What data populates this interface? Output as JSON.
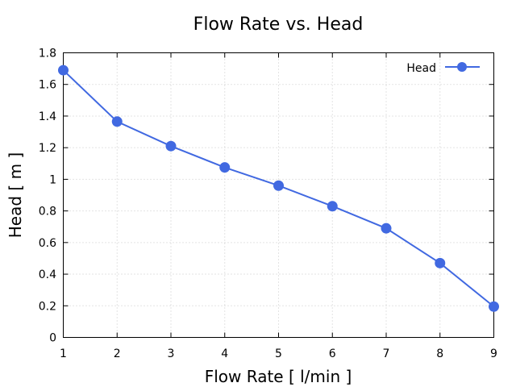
{
  "chart_data": {
    "type": "line",
    "title": "Flow Rate vs. Head",
    "xlabel": "Flow Rate [ l/min ]",
    "ylabel": "Head [ m ]",
    "x": [
      1,
      2,
      3,
      4,
      5,
      6,
      7,
      8,
      9
    ],
    "xlim": [
      1,
      9
    ],
    "ylim": [
      0,
      1.8
    ],
    "xticks": [
      1,
      2,
      3,
      4,
      5,
      6,
      7,
      8,
      9
    ],
    "yticks": [
      0,
      0.2,
      0.4,
      0.6,
      0.8,
      1,
      1.2,
      1.4,
      1.6,
      1.8
    ],
    "xtick_labels": [
      "1",
      "2",
      "3",
      "4",
      "5",
      "6",
      "7",
      "8",
      "9"
    ],
    "ytick_labels": [
      "0",
      "0.2",
      "0.4",
      "0.6",
      "0.8",
      "1",
      "1.2",
      "1.4",
      "1.6",
      "1.8"
    ],
    "grid": true,
    "legend_position": "top-right",
    "series": [
      {
        "name": "Head",
        "color": "#4169e1",
        "marker": "circle",
        "values": [
          1.69,
          1.365,
          1.21,
          1.075,
          0.96,
          0.83,
          0.69,
          0.47,
          0.195
        ]
      }
    ]
  }
}
